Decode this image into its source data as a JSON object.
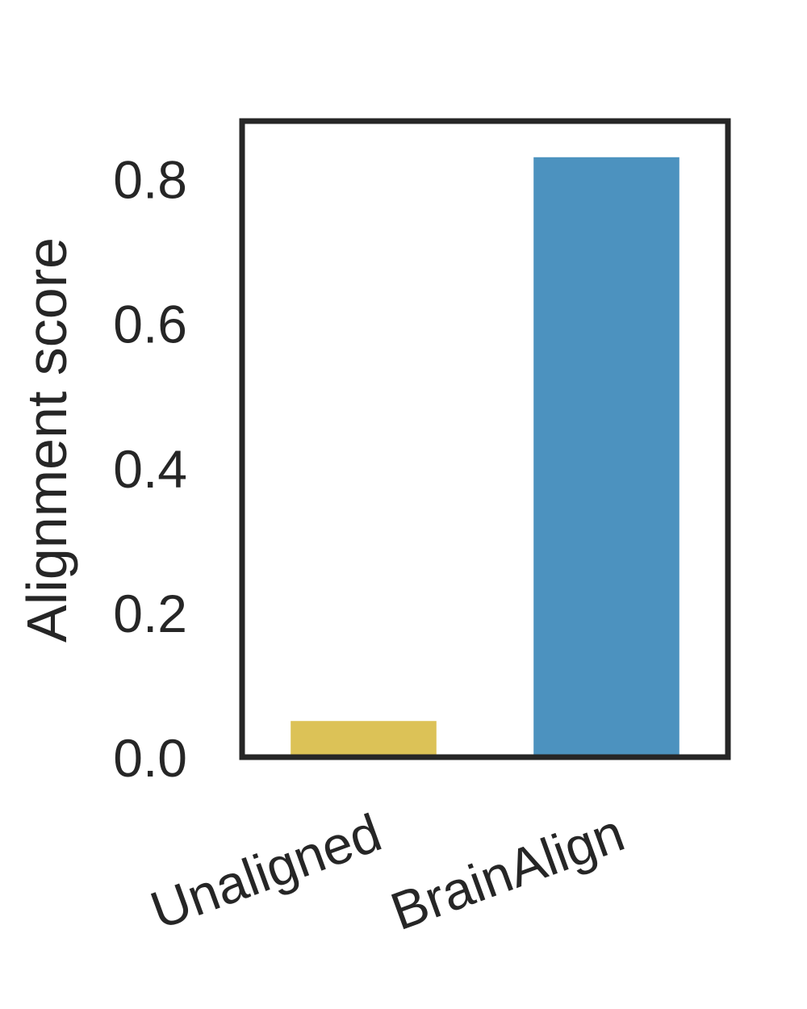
{
  "chart_data": {
    "type": "bar",
    "categories": [
      "Unaligned",
      "BrainAlign"
    ],
    "values": [
      0.05,
      0.83
    ],
    "colors": [
      "#dcc257",
      "#4c92bf"
    ],
    "ylabel": "Alignment score",
    "ylim": [
      0,
      0.88
    ],
    "yticks": [
      0.0,
      0.2,
      0.4,
      0.6,
      0.8
    ],
    "ytick_labels": [
      "0.0",
      "0.2",
      "0.4",
      "0.6",
      "0.8"
    ],
    "grid": false,
    "legend": "none",
    "frame_color": "#262626"
  }
}
